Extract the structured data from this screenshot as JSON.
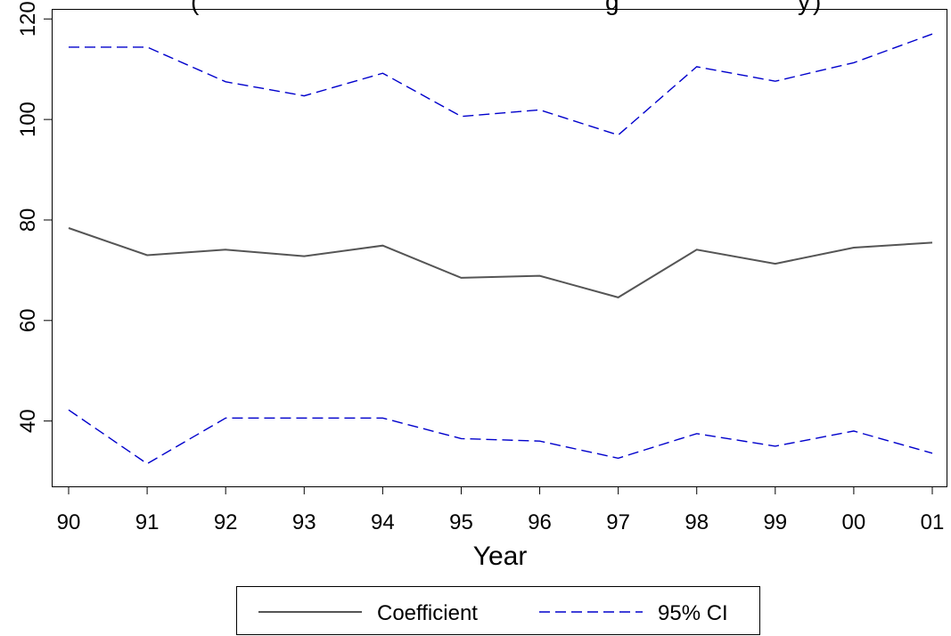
{
  "chart_data": {
    "type": "line",
    "title": "(",
    "title_visible_fragment": "g",
    "title_visible_tail": "y",
    "title_visible_end": ")",
    "xlabel": "Year",
    "ylabel": "",
    "categories": [
      "90",
      "91",
      "92",
      "93",
      "94",
      "95",
      "96",
      "97",
      "98",
      "99",
      "00",
      "01"
    ],
    "ylim": [
      27,
      122
    ],
    "yticks": [
      40,
      60,
      80,
      100,
      120
    ],
    "grid": false,
    "legend_position": "bottom-center",
    "series": [
      {
        "name": "Coefficient",
        "style": "solid",
        "color": "#555555",
        "values": [
          78.4,
          73.0,
          74.1,
          72.8,
          74.9,
          68.5,
          68.9,
          64.6,
          74.1,
          71.3,
          74.5,
          75.5
        ]
      },
      {
        "name": "95% CI",
        "style": "dashed",
        "color": "#0000cc",
        "values": [
          114.4,
          114.4,
          107.5,
          104.7,
          109.2,
          100.6,
          101.9,
          96.9,
          110.5,
          107.6,
          111.3,
          117.0
        ]
      },
      {
        "name": "",
        "style": "dashed",
        "color": "#0000cc",
        "values": [
          42.2,
          31.5,
          40.6,
          40.6,
          40.6,
          36.5,
          36.0,
          32.6,
          37.5,
          35.0,
          38.0,
          33.6
        ]
      }
    ]
  }
}
